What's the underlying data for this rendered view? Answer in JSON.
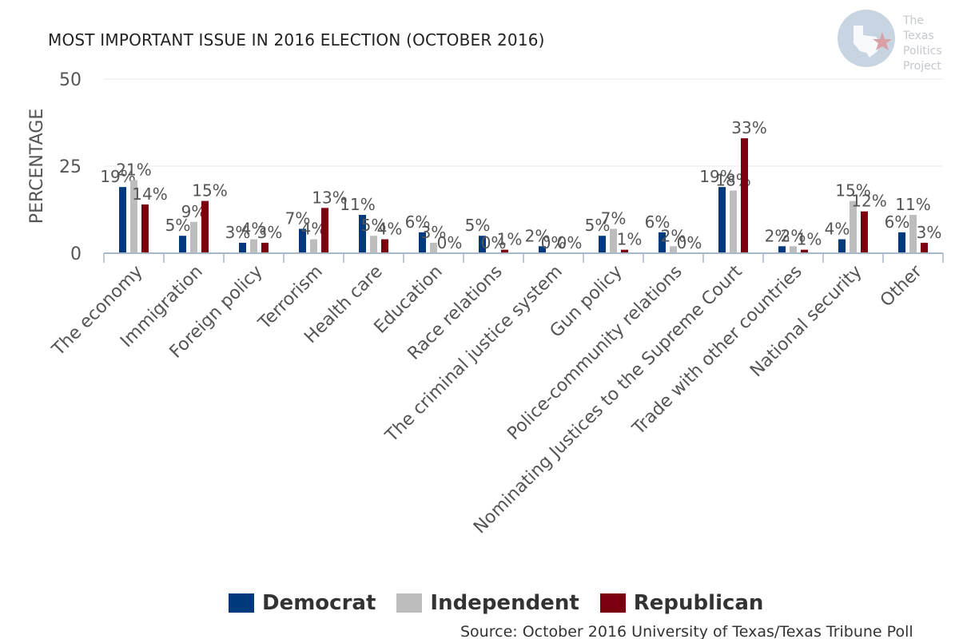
{
  "header": {
    "title": "MOST IMPORTANT ISSUE IN 2016 ELECTION (OCTOBER 2016)"
  },
  "logo": {
    "icon": "texas-star-logo-icon",
    "lines": [
      "The",
      "Texas",
      "Politics",
      "Project"
    ]
  },
  "footer": {
    "source": "Source: October 2016 University of Texas/Texas Tribune Poll"
  },
  "colors": {
    "democrat": "#003a7d",
    "independent": "#bdbdbd",
    "republican": "#7a0010",
    "axis": "#a7b6c9",
    "grid": "#e8e8e8",
    "text": "#555555"
  },
  "chart_data": {
    "type": "bar",
    "title": "MOST IMPORTANT ISSUE IN 2016 ELECTION (OCTOBER 2016)",
    "ylabel": "PERCENTAGE",
    "xlabel": "",
    "ylim": [
      0,
      50
    ],
    "yticks": [
      0,
      25,
      50
    ],
    "grid": true,
    "legend_position": "bottom",
    "categories": [
      "The economy",
      "Immigration",
      "Foreign policy",
      "Terrorism",
      "Health care",
      "Education",
      "Race relations",
      "The criminal justice system",
      "Gun policy",
      "Police-community relations",
      "Nominating Justices to the Supreme Court",
      "Trade with other countries",
      "National security",
      "Other"
    ],
    "series": [
      {
        "name": "Democrat",
        "values": [
          19,
          5,
          3,
          7,
          11,
          6,
          5,
          2,
          5,
          6,
          19,
          2,
          4,
          6
        ],
        "labels": [
          "19%",
          "5%",
          "3%",
          "7%",
          "11%",
          "6%",
          "5%",
          "2%",
          "5%",
          "6%",
          "19%",
          "2%",
          "4%",
          "6%"
        ]
      },
      {
        "name": "Independent",
        "values": [
          21,
          9,
          4,
          4,
          5,
          3,
          0,
          0,
          7,
          2,
          18,
          2,
          15,
          11
        ],
        "labels": [
          "21%",
          "9%",
          "4%",
          "4%",
          "5%",
          "3%",
          "0%",
          "0%",
          "7%",
          "2%",
          "18%",
          "2%",
          "15%",
          "11%"
        ]
      },
      {
        "name": "Republican",
        "values": [
          14,
          15,
          3,
          13,
          4,
          0,
          1,
          0,
          1,
          0,
          33,
          1,
          12,
          3
        ],
        "labels": [
          "14%",
          "15%",
          "3%",
          "13%",
          "4%",
          "0%",
          "1%",
          "0%",
          "1%",
          "0%",
          "33%",
          "1%",
          "12%",
          "3%"
        ]
      }
    ]
  }
}
